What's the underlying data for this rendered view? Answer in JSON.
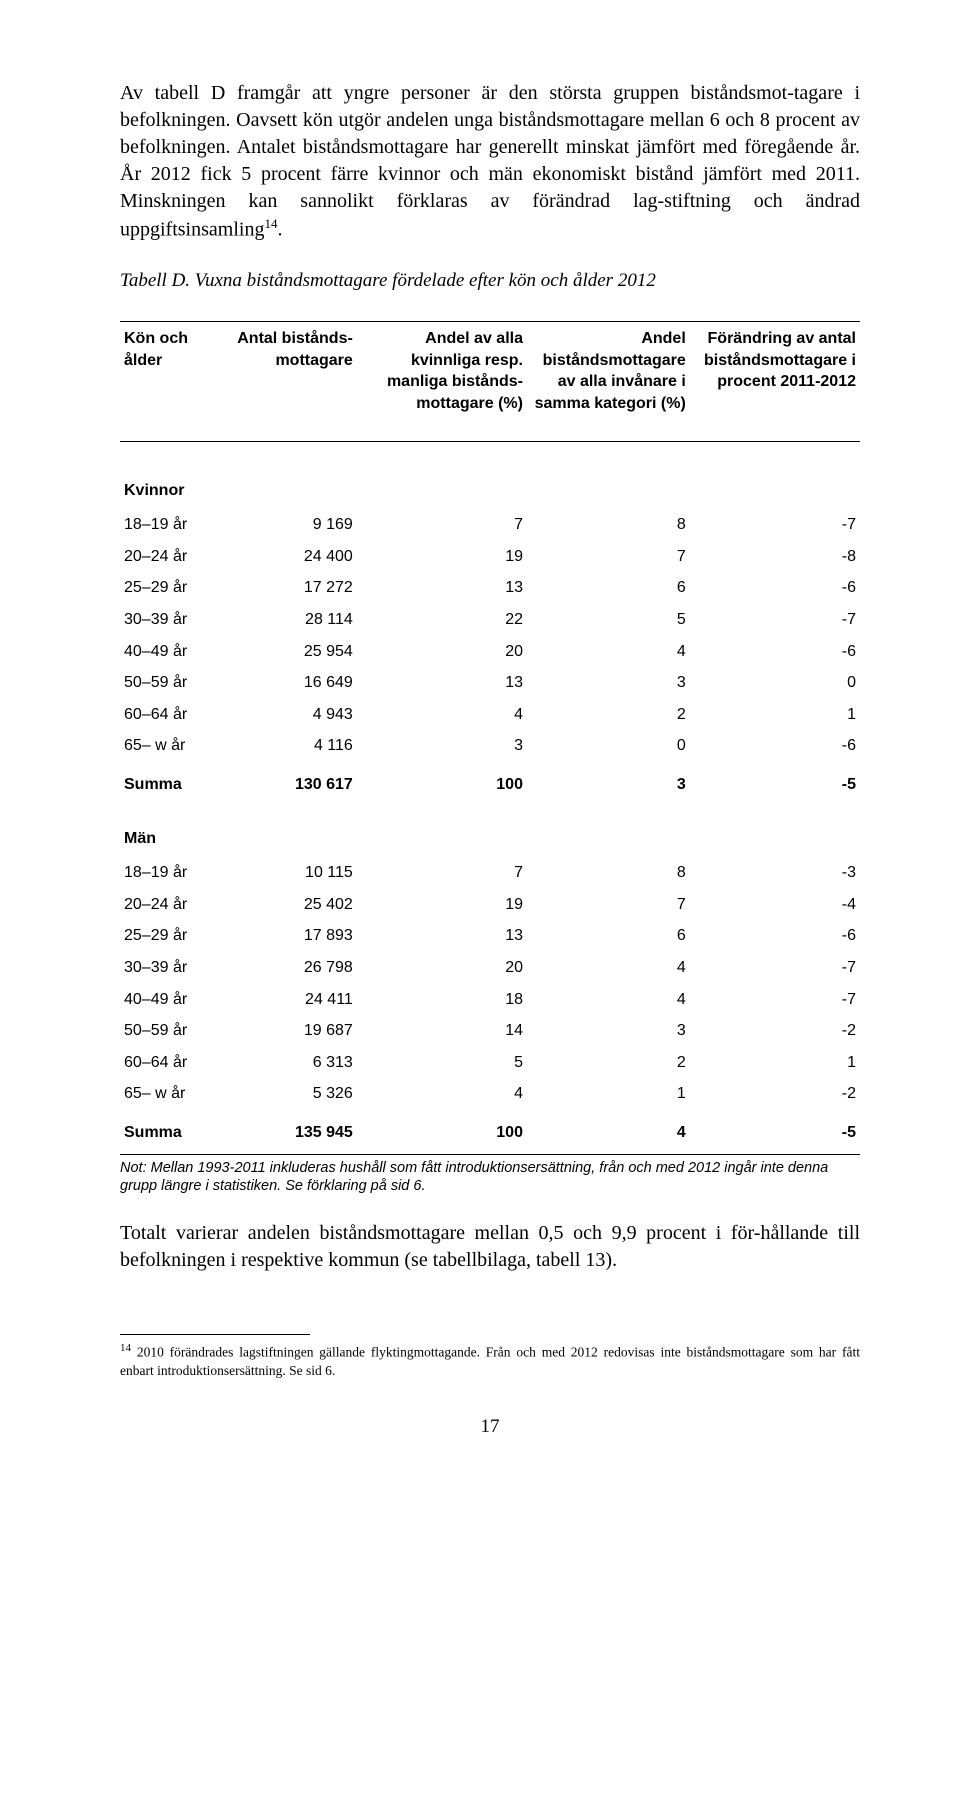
{
  "para1_parts": [
    "Av tabell D framgår att yngre personer är den största gruppen biståndsmot-tagare i befolkningen. Oavsett kön utgör andelen unga biståndsmottagare mellan 6 och 8 procent av befolkningen. Antalet biståndsmottagare har generellt minskat jämfört med föregående år. År 2012 fick 5 procent färre kvinnor och män ekonomiskt bistånd jämfört med 2011. Minskningen kan sannolikt förklaras av förändrad lag-stiftning och ändrad uppgiftsinsamling",
    "14",
    "."
  ],
  "table_title": "Tabell D. Vuxna biståndsmottagare fördelade efter kön och ålder 2012",
  "headers": [
    "Kön och ålder",
    "Antal bistånds-mottagare",
    "Andel av alla kvinnliga resp. manliga bistånds-mottagare (%)",
    "Andel biståndsmottagare av alla invånare i samma kategori (%)",
    "Förändring av antal biståndsmottagare i procent 2011-2012"
  ],
  "section1_label": "Kvinnor",
  "rows1": [
    [
      "18–19 år",
      "9 169",
      "7",
      "8",
      "-7"
    ],
    [
      "20–24 år",
      "24 400",
      "19",
      "7",
      "-8"
    ],
    [
      "25–29 år",
      "17 272",
      "13",
      "6",
      "-6"
    ],
    [
      "30–39 år",
      "28 114",
      "22",
      "5",
      "-7"
    ],
    [
      "40–49 år",
      "25 954",
      "20",
      "4",
      "-6"
    ],
    [
      "50–59 år",
      "16 649",
      "13",
      "3",
      "0"
    ],
    [
      "60–64 år",
      "4 943",
      "4",
      "2",
      "1"
    ],
    [
      "65– w år",
      "4 116",
      "3",
      "0",
      "-6"
    ]
  ],
  "summa1": [
    "Summa",
    "130 617",
    "100",
    "3",
    "-5"
  ],
  "section2_label": "Män",
  "rows2": [
    [
      "18–19 år",
      "10 115",
      "7",
      "8",
      "-3"
    ],
    [
      "20–24 år",
      "25 402",
      "19",
      "7",
      "-4"
    ],
    [
      "25–29 år",
      "17 893",
      "13",
      "6",
      "-6"
    ],
    [
      "30–39 år",
      "26 798",
      "20",
      "4",
      "-7"
    ],
    [
      "40–49 år",
      "24 411",
      "18",
      "4",
      "-7"
    ],
    [
      "50–59 år",
      "19 687",
      "14",
      "3",
      "-2"
    ],
    [
      "60–64 år",
      "6 313",
      "5",
      "2",
      "1"
    ],
    [
      "65– w år",
      "5 326",
      "4",
      "1",
      "-2"
    ]
  ],
  "summa2": [
    "Summa",
    "135 945",
    "100",
    "4",
    "-5"
  ],
  "table_note": "Not: Mellan 1993-2011 inkluderas hushåll som fått introduktionsersättning, från och med 2012 ingår inte denna grupp längre i statistiken. Se förklaring på sid 6.",
  "para2": "Totalt varierar andelen biståndsmottagare mellan 0,5 och 9,9 procent i för-hållande till befolkningen i respektive kommun (se tabellbilaga, tabell 13).",
  "footnote_parts": [
    "14",
    " 2010 förändrades lagstiftningen gällande flyktingmottagande. Från och med 2012 redovisas inte biståndsmottagare som har fått enbart introduktionsersättning. Se sid 6."
  ],
  "page_number": "17",
  "col_widths": [
    "15%",
    "17%",
    "23%",
    "22%",
    "23%"
  ]
}
